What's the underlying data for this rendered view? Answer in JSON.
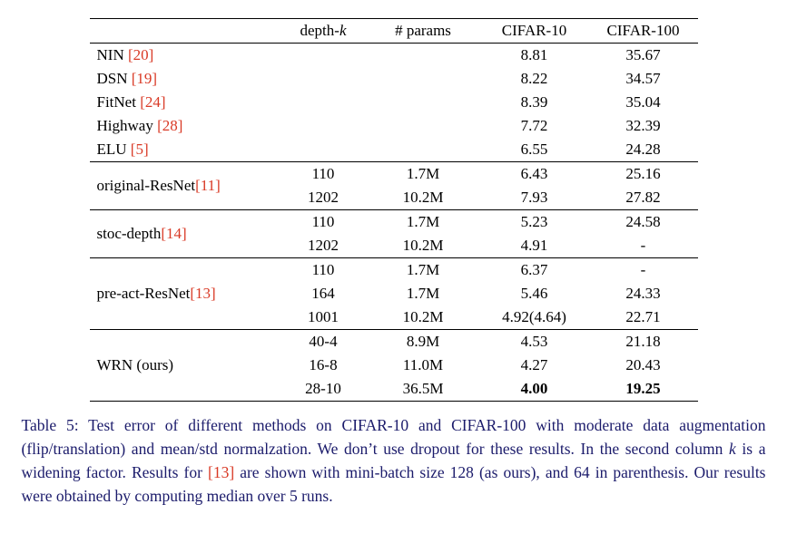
{
  "colors": {
    "citation": "#d93a26",
    "caption_text": "#1b1b6b",
    "table_text": "#000000"
  },
  "table": {
    "headers": [
      {
        "segs": []
      },
      {
        "segs": [
          {
            "t": "depth-"
          },
          {
            "t": "k",
            "i": true
          }
        ]
      },
      {
        "segs": [
          {
            "t": "# params"
          }
        ]
      },
      {
        "segs": [
          {
            "t": "CIFAR-10"
          }
        ]
      },
      {
        "segs": [
          {
            "t": "CIFAR-100"
          }
        ]
      }
    ],
    "groups": [
      {
        "rows": [
          {
            "method": "NIN ",
            "cite": "[20]",
            "depth": "",
            "params": "",
            "c10": "8.81",
            "c100": "35.67"
          },
          {
            "method": "DSN ",
            "cite": "[19]",
            "depth": "",
            "params": "",
            "c10": "8.22",
            "c100": "34.57"
          },
          {
            "method": "FitNet ",
            "cite": "[24]",
            "depth": "",
            "params": "",
            "c10": "8.39",
            "c100": "35.04"
          },
          {
            "method": "Highway ",
            "cite": "[28]",
            "depth": "",
            "params": "",
            "c10": "7.72",
            "c100": "32.39"
          },
          {
            "method": "ELU ",
            "cite": "[5]",
            "depth": "",
            "params": "",
            "c10": "6.55",
            "c100": "24.28"
          }
        ]
      },
      {
        "method": "original-ResNet",
        "cite": "[11]",
        "rows": [
          {
            "depth": "110",
            "params": "1.7M",
            "c10": "6.43",
            "c100": "25.16"
          },
          {
            "depth": "1202",
            "params": "10.2M",
            "c10": "7.93",
            "c100": "27.82"
          }
        ]
      },
      {
        "method": "stoc-depth",
        "cite": "[14]",
        "rows": [
          {
            "depth": "110",
            "params": "1.7M",
            "c10": "5.23",
            "c100": "24.58"
          },
          {
            "depth": "1202",
            "params": "10.2M",
            "c10": "4.91",
            "c100": "-"
          }
        ]
      },
      {
        "method": "pre-act-ResNet",
        "cite": "[13]",
        "rows": [
          {
            "depth": "110",
            "params": "1.7M",
            "c10": "6.37",
            "c100": "-"
          },
          {
            "depth": "164",
            "params": "1.7M",
            "c10": "5.46",
            "c100": "24.33"
          },
          {
            "depth": "1001",
            "params": "10.2M",
            "c10": "4.92(4.64)",
            "c100": "22.71"
          }
        ]
      },
      {
        "method": "WRN (ours)",
        "cite": "",
        "rows": [
          {
            "depth": "40-4",
            "params": "8.9M",
            "c10": "4.53",
            "c100": "21.18"
          },
          {
            "depth": "16-8",
            "params": "11.0M",
            "c10": "4.27",
            "c100": "20.43"
          },
          {
            "depth": "28-10",
            "params": "36.5M",
            "c10": "4.00",
            "c100": "19.25",
            "bold": true
          }
        ]
      }
    ]
  },
  "caption": {
    "segments": [
      {
        "text": "Table 5: Test error of different methods on CIFAR-10 and CIFAR-100 with moderate data augmentation (flip/translation) and mean/std normalzation. We don’t use dropout for these results. In the second column ",
        "style": "normal"
      },
      {
        "text": "k",
        "style": "italic"
      },
      {
        "text": " is a widening factor. Results for ",
        "style": "normal"
      },
      {
        "text": "[13]",
        "style": "cite"
      },
      {
        "text": " are shown with mini-batch size 128 (as ours), and 64 in parenthesis. Our results were obtained by computing median over 5 runs.",
        "style": "normal"
      }
    ]
  }
}
